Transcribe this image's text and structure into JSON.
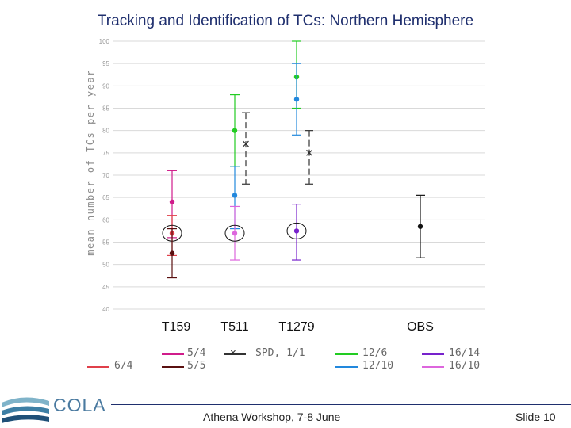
{
  "title": "Tracking and Identification of TCs: Northern Hemisphere",
  "footer": {
    "event": "Athena Workshop, 7-8 June",
    "slide": "Slide 10"
  },
  "logo": {
    "text": "COLA"
  },
  "chart_data": {
    "type": "scatter",
    "ylabel": "mean number of TCs per year",
    "ylim": [
      40,
      100
    ],
    "yticks": [
      40,
      45,
      50,
      55,
      60,
      65,
      70,
      75,
      80,
      85,
      90,
      95,
      100
    ],
    "yticklabels": [
      "40",
      "45",
      "50",
      "55",
      "60",
      "65",
      "70",
      "75",
      "80",
      "85",
      "90",
      "95",
      "100"
    ],
    "categories": [
      "T159",
      "T511",
      "T1279",
      "OBS"
    ],
    "points": [
      {
        "category": "T159",
        "series": "5/4",
        "value": 64,
        "low": 56,
        "high": 71,
        "color": "#d01c8b",
        "marker": "dot",
        "circled": false
      },
      {
        "category": "T159",
        "series": "6/4",
        "value": 57,
        "low": 52,
        "high": 61,
        "color": "#e0404a",
        "marker": "dot",
        "circled": true
      },
      {
        "category": "T159",
        "series": "5/5",
        "value": 52.5,
        "low": 47,
        "high": 58,
        "color": "#5a1010",
        "marker": "dot",
        "circled": false
      },
      {
        "category": "T511",
        "series": "12/6",
        "value": 80,
        "low": 72,
        "high": 88,
        "color": "#22cc22",
        "marker": "dot",
        "circled": false
      },
      {
        "category": "T511",
        "series": "12/10",
        "value": 65.5,
        "low": 58,
        "high": 72,
        "color": "#2288dd",
        "marker": "dot",
        "circled": false
      },
      {
        "category": "T511",
        "series": "16/10",
        "value": 57,
        "low": 51,
        "high": 63,
        "color": "#dd66dd",
        "marker": "dot",
        "circled": true
      },
      {
        "category": "T511",
        "series": "SPD, 1/1",
        "value": 77,
        "low": 68,
        "high": 84,
        "color": "#333333",
        "marker": "x",
        "circled": false
      },
      {
        "category": "T1279",
        "series": "12/6",
        "value": 92,
        "low": 85,
        "high": 100,
        "color": "#22cc22",
        "marker": "dot",
        "circled": false
      },
      {
        "category": "T1279",
        "series": "12/10",
        "value": 87,
        "low": 79,
        "high": 95,
        "color": "#2288dd",
        "marker": "dot",
        "circled": false
      },
      {
        "category": "T1279",
        "series": "16/14",
        "value": 57.5,
        "low": 51,
        "high": 63.5,
        "color": "#7722cc",
        "marker": "dot",
        "circled": true
      },
      {
        "category": "T1279",
        "series": "SPD, 1/1",
        "value": 75,
        "low": 68,
        "high": 80,
        "color": "#333333",
        "marker": "x",
        "circled": false
      },
      {
        "category": "OBS",
        "series": "OBS",
        "value": 58.5,
        "low": 51.5,
        "high": 65.5,
        "color": "#111111",
        "marker": "dot",
        "circled": false
      }
    ],
    "legend": [
      {
        "label": "5/4",
        "color": "#d01c8b",
        "marker": "line"
      },
      {
        "label": "5/5",
        "color": "#5a1010",
        "marker": "line"
      },
      {
        "label": "6/4",
        "color": "#e0404a",
        "marker": "line"
      },
      {
        "label": "SPD, 1/1",
        "color": "#333333",
        "marker": "x"
      },
      {
        "label": "12/6",
        "color": "#22cc22",
        "marker": "line"
      },
      {
        "label": "12/10",
        "color": "#2288dd",
        "marker": "line"
      },
      {
        "label": "16/14",
        "color": "#7722cc",
        "marker": "line"
      },
      {
        "label": "16/10",
        "color": "#dd66dd",
        "marker": "line"
      }
    ],
    "grid": true,
    "legend_position": "bottom"
  }
}
